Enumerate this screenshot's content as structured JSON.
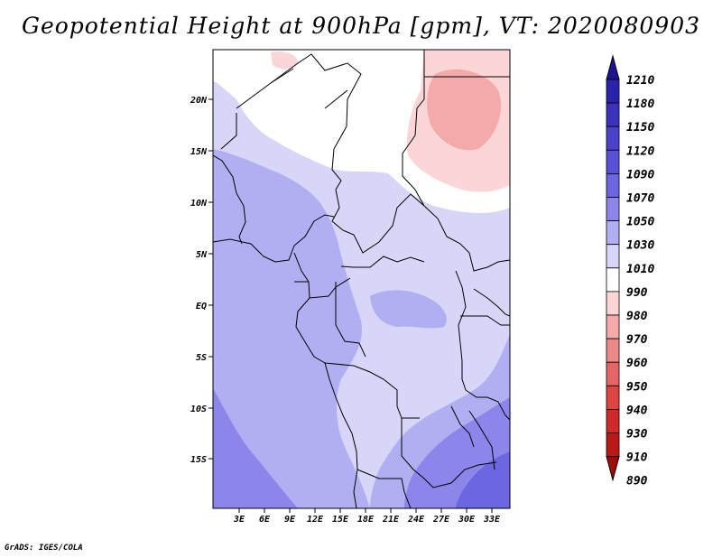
{
  "title": "Geopotential Height at 900hPa [gpm], VT: 2020080903",
  "footer": "GrADS: IGES/COLA",
  "axes": {
    "lat_labels": [
      "20N",
      "15N",
      "10N",
      "5N",
      "EQ",
      "5S",
      "10S",
      "15S"
    ],
    "lon_labels": [
      "3E",
      "6E",
      "9E",
      "12E",
      "15E",
      "18E",
      "21E",
      "24E",
      "27E",
      "30E",
      "33E"
    ]
  },
  "colorbar": {
    "levels": [
      "1210",
      "1180",
      "1150",
      "1120",
      "1090",
      "1070",
      "1050",
      "1030",
      "1010",
      "990",
      "980",
      "970",
      "960",
      "950",
      "940",
      "930",
      "910",
      "890"
    ],
    "colors": [
      "#1e1290",
      "#2a22a8",
      "#3a32bd",
      "#4a42c9",
      "#5a52d6",
      "#6c66e0",
      "#8c86ea",
      "#b2aef2",
      "#d8d6f8",
      "#ffffff",
      "#fcd6d6",
      "#f4aaaa",
      "#ec8a8a",
      "#e46666",
      "#dd4444",
      "#cf2a2a",
      "#b81818",
      "#a00c0c"
    ]
  },
  "legend_colors": {
    "high": "#8c86ea",
    "mid": "#b2aef2",
    "low": "#d8d6f8",
    "neutral": "#ffffff",
    "warm1": "#fcd6d6",
    "warm2": "#f4aaaa"
  }
}
